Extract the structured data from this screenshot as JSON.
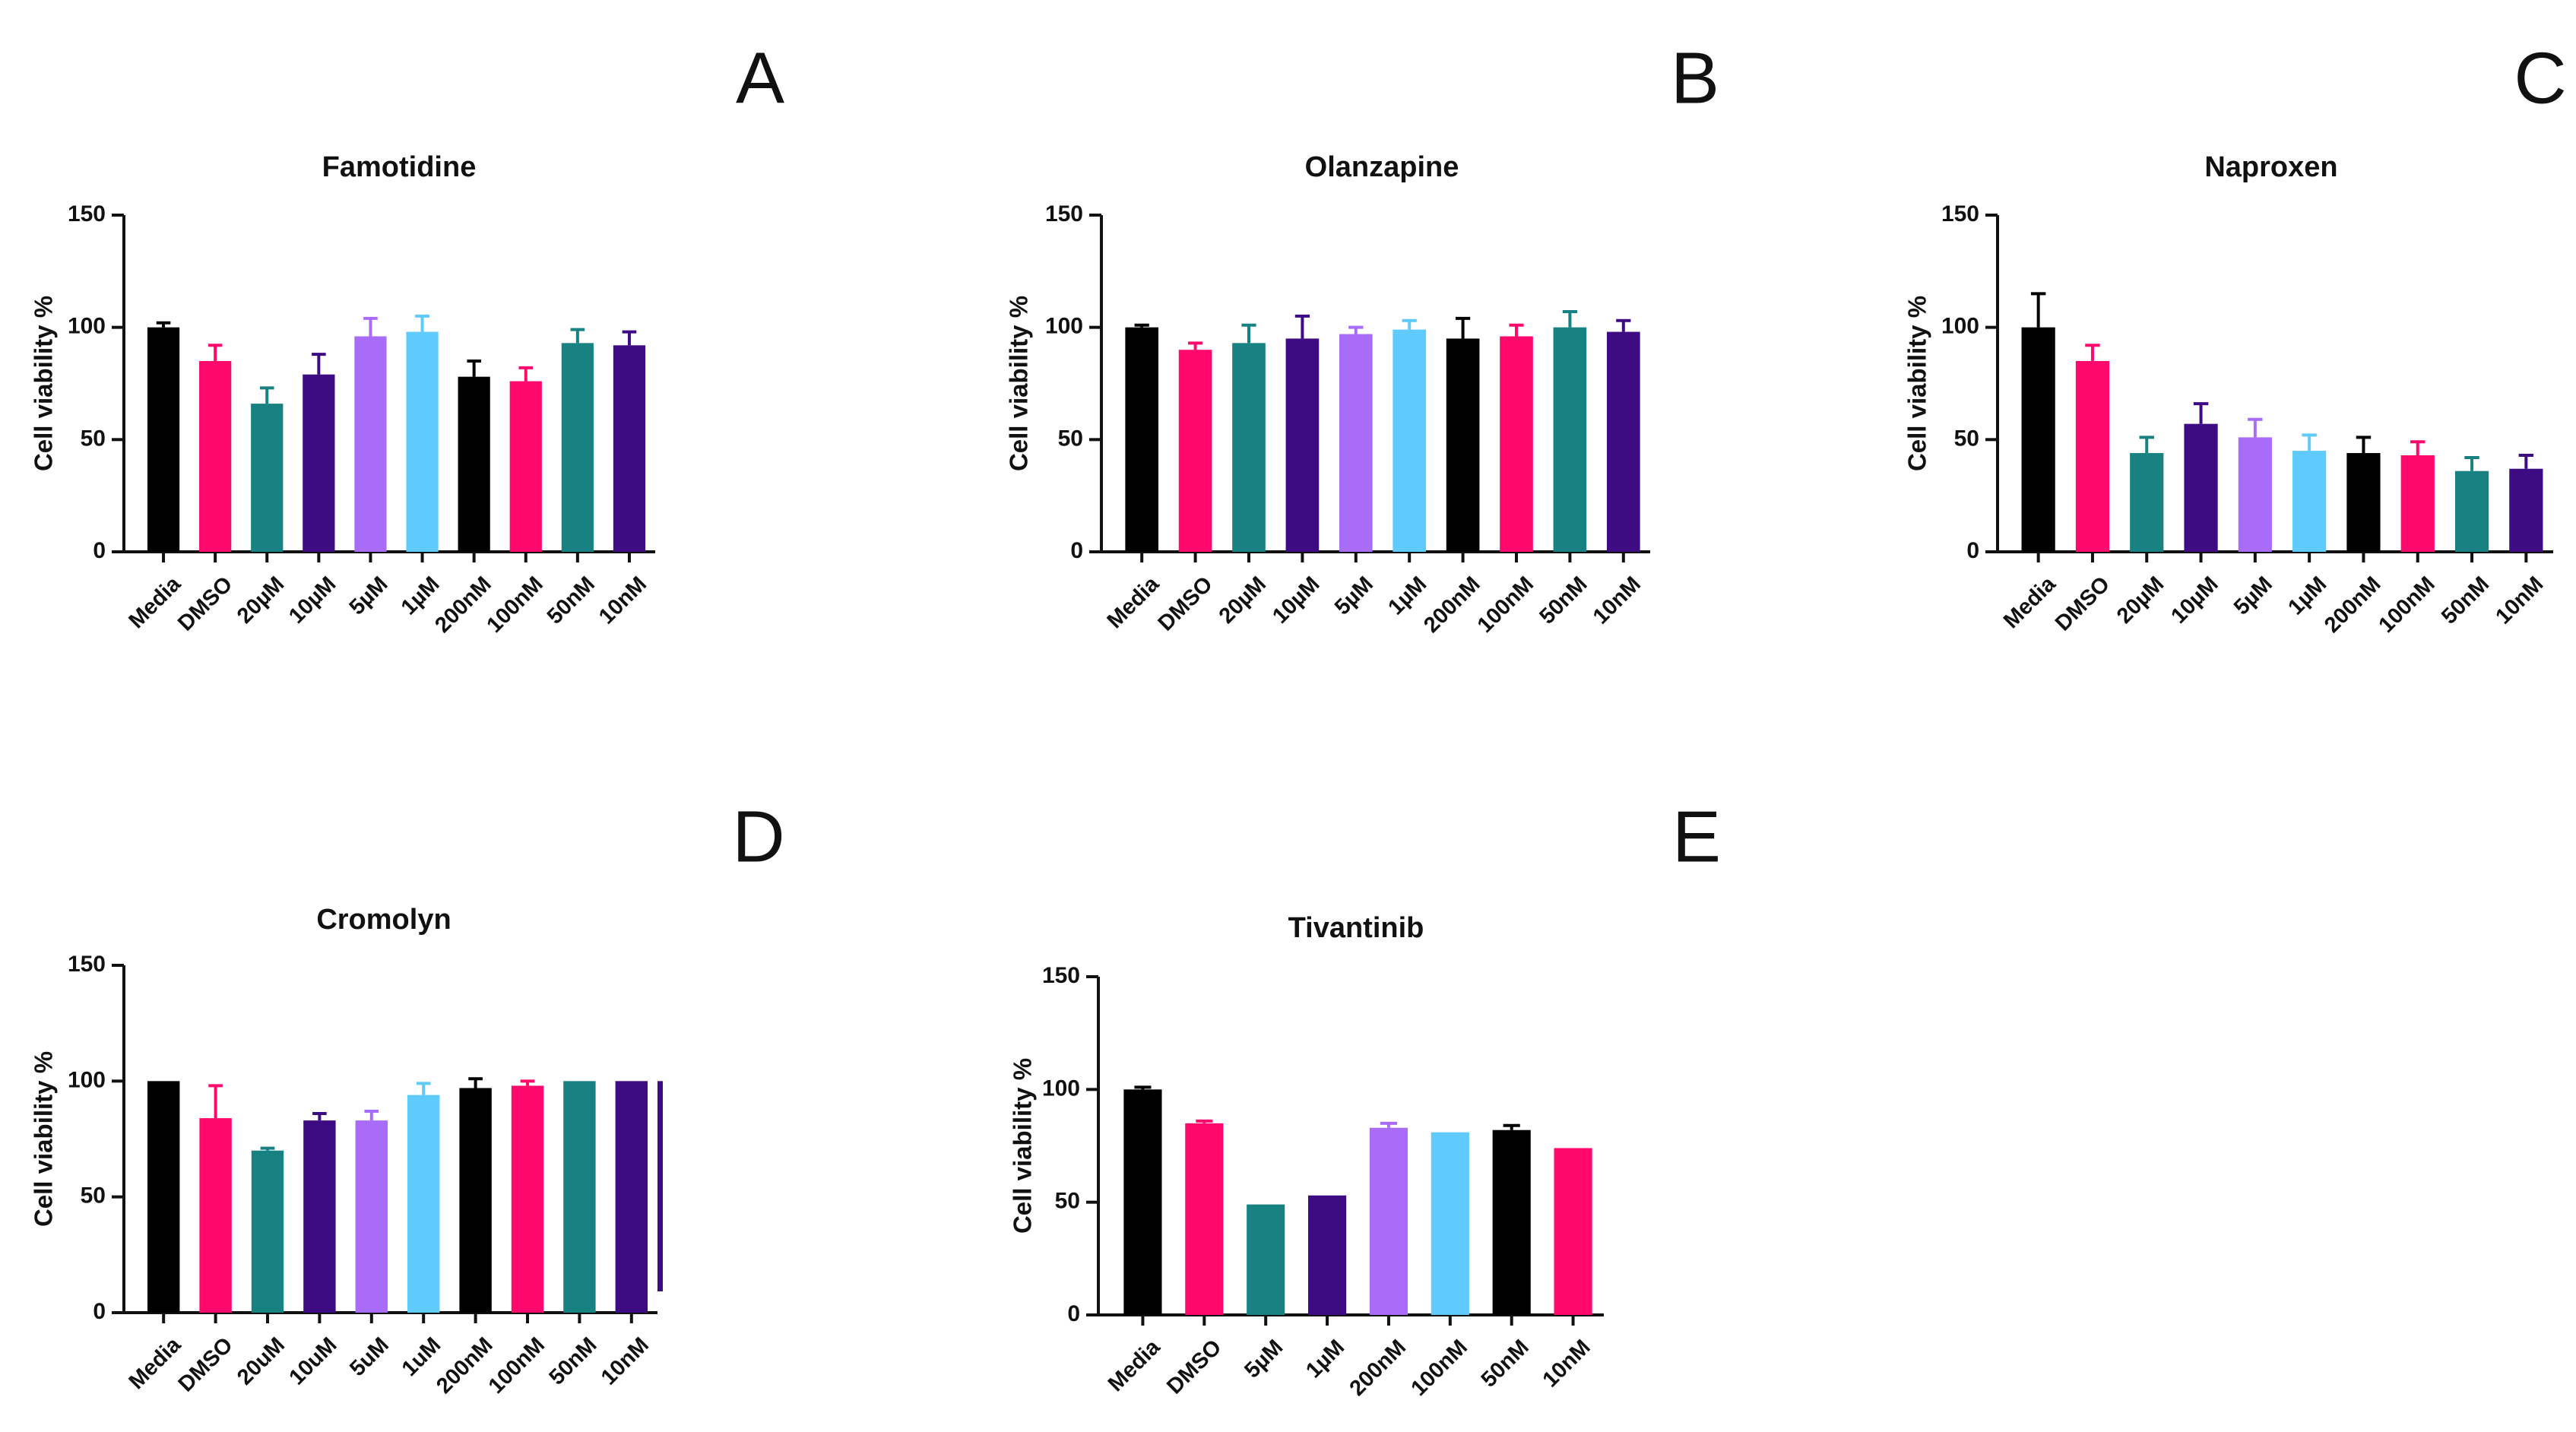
{
  "colors": {
    "black": "#000000",
    "pink": "#ff0a6c",
    "teal": "#178281",
    "purple": "#3d0b82",
    "lavender": "#a86cf9",
    "skyblue": "#5fcafc"
  },
  "chart_data": [
    {
      "panel": "A",
      "type": "bar",
      "title": "Famotidine",
      "ylabel": "Cell viability %",
      "xlabel": "",
      "ylim": [
        0,
        150
      ],
      "yticks": [
        "0",
        "50",
        "100",
        "150"
      ],
      "grid": false,
      "categories": [
        "Media",
        "DMSO",
        "20µM",
        "10µM",
        "5µM",
        "1µM",
        "200nM",
        "100nM",
        "50nM",
        "10nM"
      ],
      "values": [
        100,
        85,
        66,
        79,
        96,
        98,
        78,
        76,
        93,
        92
      ],
      "errors": [
        2,
        7,
        7,
        9,
        8,
        7,
        7,
        6,
        6,
        6
      ],
      "bar_colors": [
        "#000000",
        "#ff0a6c",
        "#178281",
        "#3d0b82",
        "#a86cf9",
        "#5fcafc",
        "#000000",
        "#ff0a6c",
        "#178281",
        "#3d0b82"
      ]
    },
    {
      "panel": "B",
      "type": "bar",
      "title": "Olanzapine",
      "ylabel": "Cell viability %",
      "xlabel": "",
      "ylim": [
        0,
        150
      ],
      "yticks": [
        "0",
        "50",
        "100",
        "150"
      ],
      "grid": false,
      "categories": [
        "Media",
        "DMSO",
        "20µM",
        "10µM",
        "5µM",
        "1µM",
        "200nM",
        "100nM",
        "50nM",
        "10nM"
      ],
      "values": [
        100,
        90,
        93,
        95,
        97,
        99,
        95,
        96,
        100,
        98
      ],
      "errors": [
        1,
        3,
        8,
        10,
        3,
        4,
        9,
        5,
        7,
        5
      ],
      "bar_colors": [
        "#000000",
        "#ff0a6c",
        "#178281",
        "#3d0b82",
        "#a86cf9",
        "#5fcafc",
        "#000000",
        "#ff0a6c",
        "#178281",
        "#3d0b82"
      ]
    },
    {
      "panel": "C",
      "type": "bar",
      "title": "Naproxen",
      "ylabel": "Cell viability %",
      "xlabel": "",
      "ylim": [
        0,
        150
      ],
      "yticks": [
        "0",
        "50",
        "100",
        "150"
      ],
      "grid": false,
      "categories": [
        "Media",
        "DMSO",
        "20µM",
        "10µM",
        "5µM",
        "1µM",
        "200nM",
        "100nM",
        "50nM",
        "10nM"
      ],
      "values": [
        100,
        85,
        44,
        57,
        51,
        45,
        44,
        43,
        36,
        37
      ],
      "errors": [
        15,
        7,
        7,
        9,
        8,
        7,
        7,
        6,
        6,
        6
      ],
      "bar_colors": [
        "#000000",
        "#ff0a6c",
        "#178281",
        "#3d0b82",
        "#a86cf9",
        "#5fcafc",
        "#000000",
        "#ff0a6c",
        "#178281",
        "#3d0b82"
      ]
    },
    {
      "panel": "D",
      "type": "bar",
      "title": "Cromolyn",
      "ylabel": "Cell viability %",
      "xlabel": "",
      "ylim": [
        0,
        150
      ],
      "yticks": [
        "0",
        "50",
        "100",
        "150"
      ],
      "grid": false,
      "categories": [
        "Media",
        "DMSO",
        "20uM",
        "10uM",
        "5uM",
        "1uM",
        "200nM",
        "100nM",
        "50nM",
        "10nM"
      ],
      "values": [
        100,
        84,
        70,
        83,
        83,
        94,
        97,
        98,
        100,
        100
      ],
      "errors": [
        0,
        14,
        1,
        3,
        4,
        5,
        4,
        2,
        0,
        0
      ],
      "bar_colors": [
        "#000000",
        "#ff0a6c",
        "#178281",
        "#3d0b82",
        "#a86cf9",
        "#5fcafc",
        "#000000",
        "#ff0a6c",
        "#178281",
        "#3d0b82"
      ]
    },
    {
      "panel": "E",
      "type": "bar",
      "title": "Tivantinib",
      "ylabel": "Cell viability %",
      "xlabel": "",
      "ylim": [
        0,
        150
      ],
      "yticks": [
        "0",
        "50",
        "100",
        "150"
      ],
      "grid": false,
      "categories": [
        "Media",
        "DMSO",
        "5µM",
        "1µM",
        "200nM",
        "100nM",
        "50nM",
        "10nM"
      ],
      "values": [
        100,
        85,
        49,
        53,
        83,
        81,
        82,
        74
      ],
      "errors": [
        1,
        1,
        0,
        0,
        2,
        0,
        2,
        0
      ],
      "bar_colors": [
        "#000000",
        "#ff0a6c",
        "#178281",
        "#3d0b82",
        "#a86cf9",
        "#5fcafc",
        "#000000",
        "#ff0a6c"
      ]
    }
  ]
}
